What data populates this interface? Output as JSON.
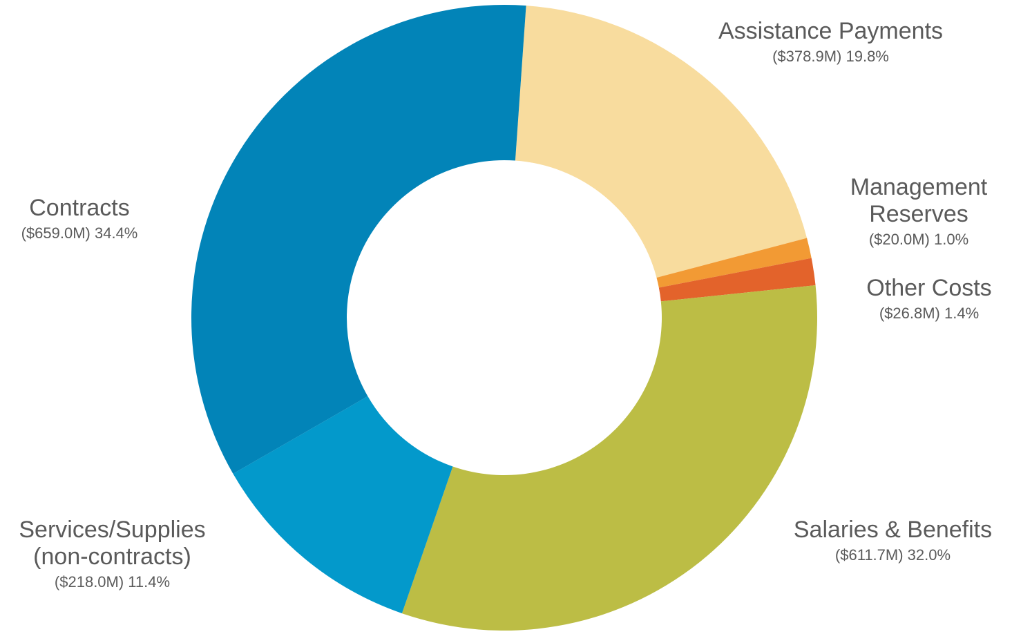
{
  "chart_data": {
    "type": "pie",
    "variant": "donut",
    "title": "",
    "legend": "none",
    "slices": [
      {
        "key": "assistance",
        "label": "Assistance Payments",
        "value_label": "($378.9M) 19.8%",
        "amount_millions": 378.9,
        "percent": 19.8,
        "color": "#f8dc9e"
      },
      {
        "key": "management",
        "label": "Management Reserves",
        "value_label": "($20.0M) 1.0%",
        "amount_millions": 20.0,
        "percent": 1.0,
        "color": "#f29a34"
      },
      {
        "key": "other",
        "label": "Other Costs",
        "value_label": "($26.8M) 1.4%",
        "amount_millions": 26.8,
        "percent": 1.4,
        "color": "#e3632b"
      },
      {
        "key": "salaries",
        "label": "Salaries & Benefits",
        "value_label": "($611.7M) 32.0%",
        "amount_millions": 611.7,
        "percent": 32.0,
        "color": "#bcbd45"
      },
      {
        "key": "services",
        "label": "Services/Supplies (non-contracts)",
        "value_label": "($218.0M) 11.4%",
        "amount_millions": 218.0,
        "percent": 11.4,
        "color": "#0399cb"
      },
      {
        "key": "contracts",
        "label": "Contracts",
        "value_label": "($659.0M) 34.4%",
        "amount_millions": 659.0,
        "percent": 34.4,
        "color": "#0284b8"
      }
    ]
  },
  "labels": {
    "assistance": {
      "name": "Assistance Payments",
      "value": "($378.9M) 19.8%"
    },
    "management": {
      "name_line1": "Management",
      "name_line2": "Reserves",
      "value": "($20.0M) 1.0%"
    },
    "other": {
      "name": "Other Costs",
      "value": "($26.8M) 1.4%"
    },
    "salaries": {
      "name": "Salaries & Benefits",
      "value": "($611.7M) 32.0%"
    },
    "services": {
      "name_line1": "Services/Supplies",
      "name_line2": "(non-contracts)",
      "value": "($218.0M) 11.4%"
    },
    "contracts": {
      "name": "Contracts",
      "value": "($659.0M) 34.4%"
    }
  }
}
